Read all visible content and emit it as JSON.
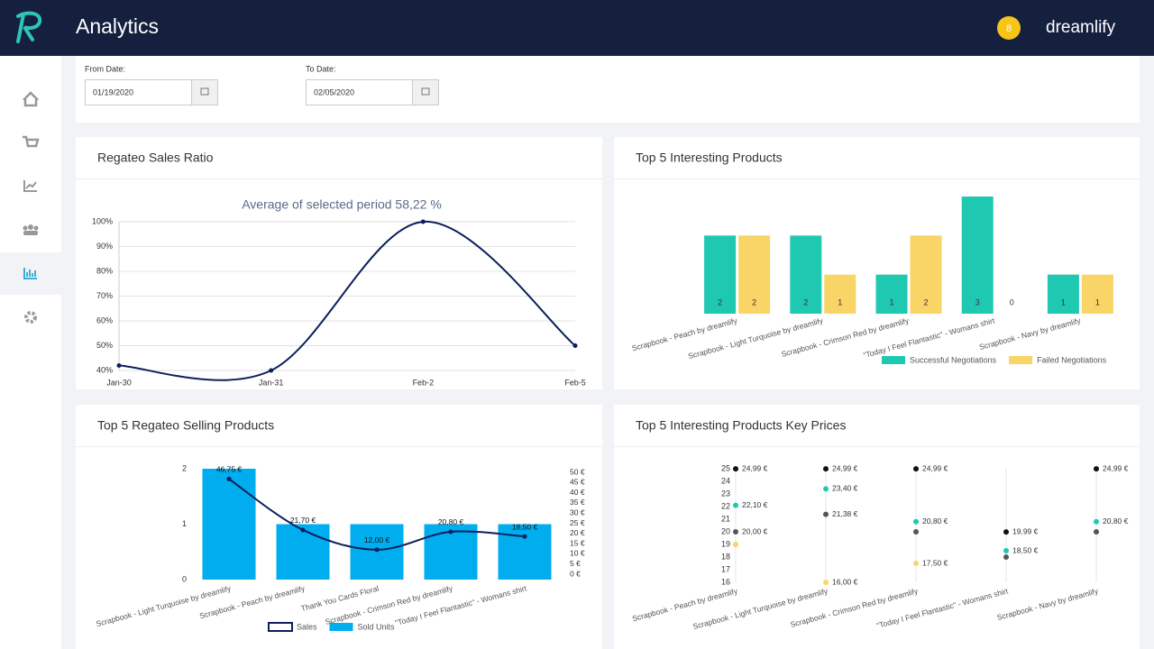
{
  "header": {
    "title": "Analytics",
    "avatar": "8",
    "user": "dreamlify"
  },
  "filters": {
    "from_label": "From Date:",
    "from_value": "01/19/2020",
    "to_label": "To Date:",
    "to_value": "02/05/2020"
  },
  "chart_data": [
    {
      "type": "line",
      "title": "Regateo Sales Ratio",
      "subtitle": "Average of selected period 58,22 %",
      "categories": [
        "Jan-30",
        "Jan-31",
        "Feb-2",
        "Feb-5"
      ],
      "values": [
        42,
        40,
        100,
        50
      ],
      "color": "#0d1f5c",
      "ylim": [
        40,
        100
      ],
      "yticks": [
        {
          "value": 40,
          "label": "40%"
        },
        {
          "value": 50,
          "label": "50%"
        },
        {
          "value": 60,
          "label": "60%"
        },
        {
          "value": 70,
          "label": "70%"
        },
        {
          "value": 80,
          "label": "80%"
        },
        {
          "value": 90,
          "label": "90%"
        },
        {
          "value": 100,
          "label": "100%"
        }
      ],
      "grid": true
    },
    {
      "type": "bar",
      "title": "Top 5 Interesting Products",
      "categories": [
        "Scrapbook - Peach by dreamlify",
        "Scrapbook - Light Turquoise by dreamlify",
        "Scrapbook - Crimson Red by dreamlify",
        "\"Today I Feel Flantastic\" - Womans shirt",
        "Scrapbook - Navy by dreamlify"
      ],
      "series": [
        {
          "name": "Successful Negotiations",
          "color": "#1fc8b0",
          "values": [
            2,
            2,
            1,
            3,
            1
          ]
        },
        {
          "name": "Failed Negotiations",
          "color": "#f9d466",
          "values": [
            2,
            1,
            2,
            0,
            1
          ]
        }
      ]
    },
    {
      "type": "combo",
      "title": "Top 5 Regateo Selling Products",
      "categories": [
        "Scrapbook - Light Turquoise by dreamlify",
        "Scrapbook - Peach by dreamlify",
        "Thank You Cards Floral",
        "Scrapbook - Crimson Red by dreamlify",
        "\"Today I Feel Flantastic\" - Womans shirt"
      ],
      "series": [
        {
          "name": "Sales",
          "color": "#0d1f5c",
          "axis": "y2",
          "values": [
            46.75,
            21.7,
            12.0,
            20.8,
            18.5
          ],
          "value_labels": [
            "46,75 €",
            "21,70 €",
            "12,00 €",
            "20,80 €",
            "18,50 €"
          ]
        },
        {
          "name": "Sold Units",
          "color": "#00adef",
          "values": [
            2,
            1,
            1,
            1,
            1
          ]
        }
      ],
      "ylim": [
        0,
        2
      ],
      "yticks": [
        0,
        1,
        2
      ],
      "y2lim": [
        0,
        50
      ],
      "y2ticks": [
        {
          "value": 0,
          "label": "0 €"
        },
        {
          "value": 5,
          "label": "5 €"
        },
        {
          "value": 10,
          "label": "10 €"
        },
        {
          "value": 15,
          "label": "15 €"
        },
        {
          "value": 20,
          "label": "20 €"
        },
        {
          "value": 25,
          "label": "25 €"
        },
        {
          "value": 30,
          "label": "30 €"
        },
        {
          "value": 35,
          "label": "35 €"
        },
        {
          "value": 40,
          "label": "40 €"
        },
        {
          "value": 45,
          "label": "45 €"
        },
        {
          "value": 50,
          "label": "50 €"
        }
      ]
    },
    {
      "type": "dot",
      "title": "Top 5 Interesting Products Key Prices",
      "categories": [
        "Scrapbook - Peach by dreamlify",
        "Scrapbook - Light Turquoise by dreamlify",
        "Scrapbook - Crimson Red by dreamlify",
        "\"Today I Feel Flantastic\" - Womans shirt",
        "Scrapbook - Navy by dreamlify"
      ],
      "series": [
        {
          "color": "#111111",
          "values": [
            24.99,
            24.99,
            24.99,
            19.99,
            24.99
          ],
          "value_labels": [
            "24,99 €",
            "24,99 €",
            "24,99 €",
            "19,99 €",
            "24,99 €"
          ]
        },
        {
          "color": "#1fc8b0",
          "values": [
            22.1,
            23.4,
            20.8,
            18.5,
            20.8
          ],
          "value_labels": [
            "22,10 €",
            "23,40 €",
            "20,80 €",
            "18,50 €",
            "20,80 €"
          ]
        },
        {
          "color": "#555555",
          "values": [
            20.0,
            21.38,
            20,
            18,
            20
          ],
          "value_labels": [
            "20,00 €",
            "21,38 €",
            null,
            null,
            null
          ]
        },
        {
          "color": "#f9d466",
          "values": [
            19,
            16.0,
            17.5,
            null,
            null
          ],
          "value_labels": [
            null,
            "16,00 €",
            "17,50 €",
            null,
            null
          ]
        }
      ],
      "ylim": [
        16,
        25
      ],
      "yticks": [
        16,
        17,
        18,
        19,
        20,
        21,
        22,
        23,
        24,
        25
      ]
    }
  ]
}
